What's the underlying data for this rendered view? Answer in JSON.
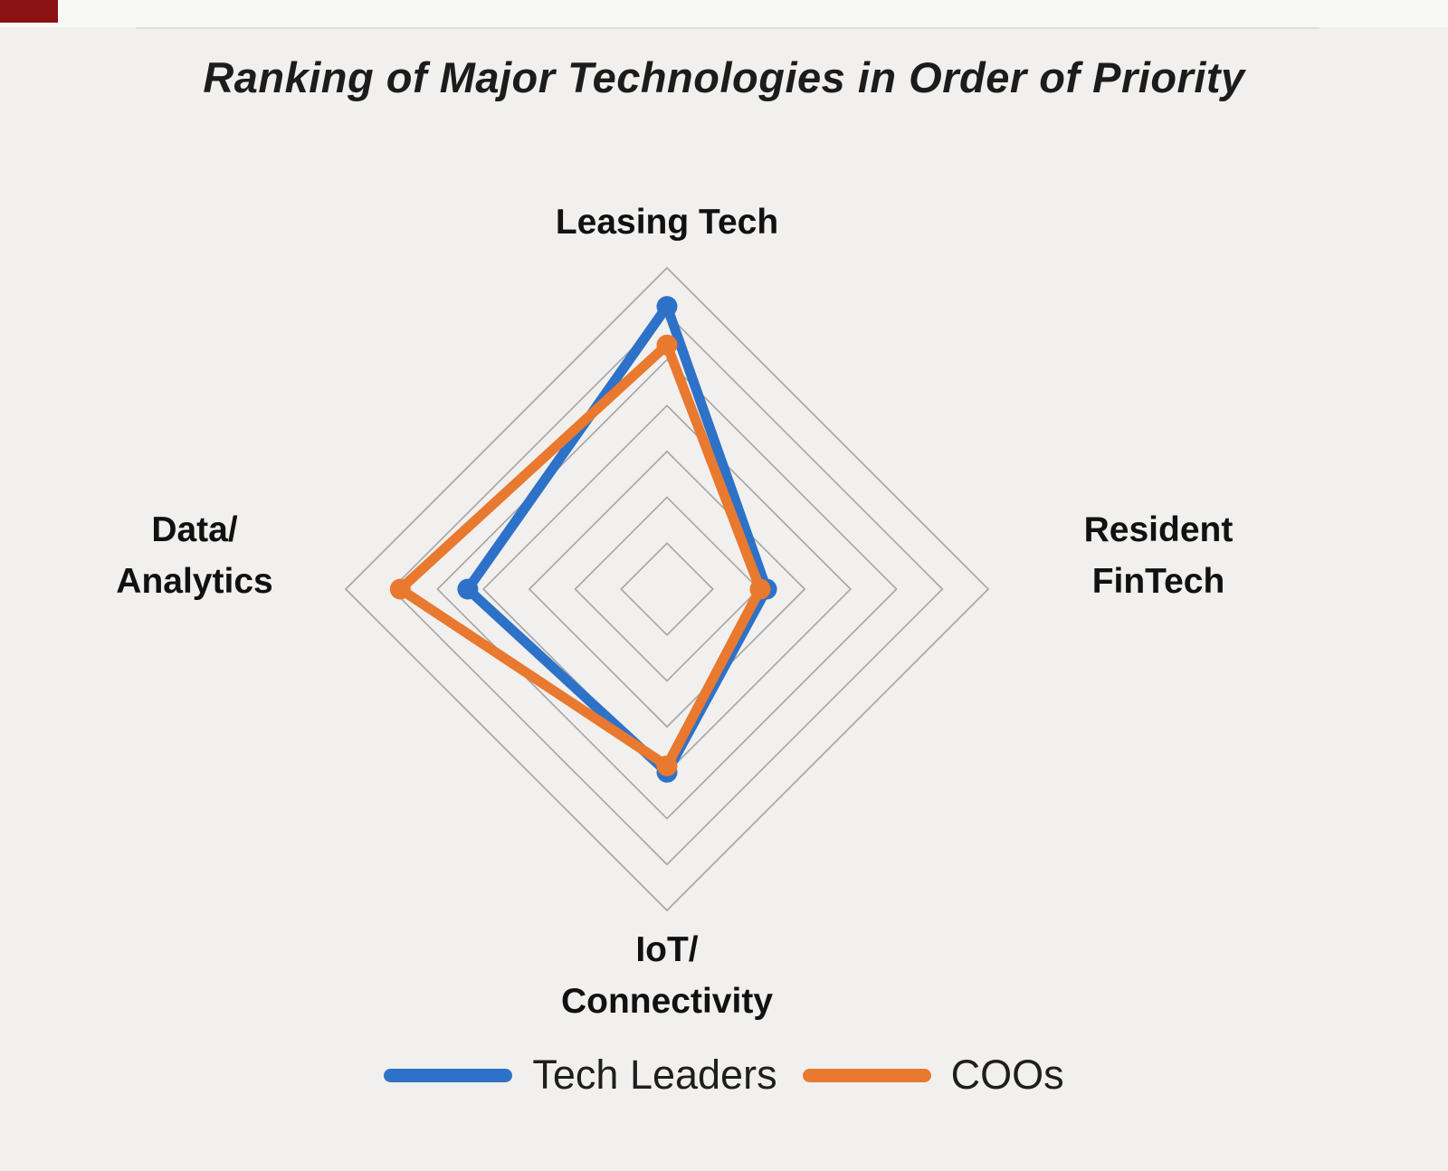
{
  "page": {
    "background_color": "#f1f0ee",
    "corner_marker_color": "#8a1212"
  },
  "title": "Ranking of Major Technologies in Order of Priority",
  "axes": {
    "top": [
      "Leasing Tech"
    ],
    "right": [
      "Resident",
      "FinTech"
    ],
    "bottom": [
      "IoT/",
      "Connectivity"
    ],
    "left": [
      "Data/",
      "Analytics"
    ]
  },
  "legend": [
    {
      "label": "Tech Leaders",
      "color": "#2d72c8"
    },
    {
      "label": "COOs",
      "color": "#e8792f"
    }
  ],
  "chart_data": {
    "type": "radar",
    "title": "Ranking of Major Technologies in Order of Priority",
    "categories": [
      "Leasing Tech",
      "Resident FinTech",
      "IoT/Connectivity",
      "Data/Analytics"
    ],
    "series": [
      {
        "name": "Tech Leaders",
        "color": "#2d72c8",
        "values": [
          88,
          31,
          57,
          62
        ]
      },
      {
        "name": "COOs",
        "color": "#e8792f",
        "values": [
          76,
          29,
          55,
          83
        ]
      }
    ],
    "max": 100,
    "rings": 7,
    "grid_color": "#a8a8a8",
    "legend_position": "bottom",
    "fill": "none"
  }
}
